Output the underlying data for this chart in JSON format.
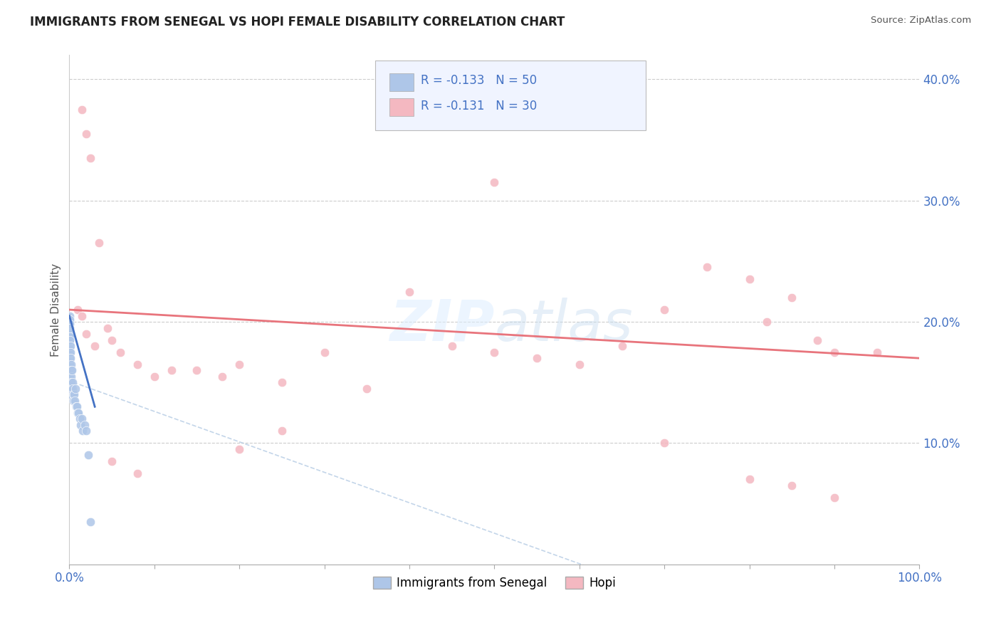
{
  "title": "IMMIGRANTS FROM SENEGAL VS HOPI FEMALE DISABILITY CORRELATION CHART",
  "source": "Source: ZipAtlas.com",
  "ylabel": "Female Disability",
  "senegal_color": "#aec6e8",
  "hopi_color": "#f4b8c1",
  "senegal_line_color": "#4472c4",
  "hopi_line_color": "#e8747c",
  "dashed_line_color": "#aac4e0",
  "grid_color": "#cccccc",
  "title_color": "#222222",
  "source_color": "#555555",
  "axis_label_color": "#4472c4",
  "legend_text_color": "#4472c4",
  "watermark": "ZIPatlas",
  "xlim": [
    0,
    100
  ],
  "ylim": [
    0,
    42
  ],
  "senegal_x": [
    0.02,
    0.02,
    0.02,
    0.03,
    0.03,
    0.03,
    0.04,
    0.04,
    0.04,
    0.05,
    0.05,
    0.05,
    0.06,
    0.06,
    0.07,
    0.07,
    0.08,
    0.08,
    0.09,
    0.09,
    0.1,
    0.1,
    0.12,
    0.12,
    0.15,
    0.15,
    0.18,
    0.2,
    0.22,
    0.25,
    0.3,
    0.35,
    0.4,
    0.45,
    0.5,
    0.55,
    0.6,
    0.7,
    0.8,
    0.9,
    1.0,
    1.1,
    1.2,
    1.3,
    1.5,
    1.6,
    1.8,
    2.0,
    2.2,
    2.5
  ],
  "senegal_y": [
    20.5,
    19.8,
    19.2,
    20.0,
    18.8,
    18.2,
    19.5,
    18.5,
    17.8,
    20.2,
    19.0,
    17.5,
    19.8,
    17.0,
    19.5,
    16.5,
    18.8,
    16.0,
    18.5,
    15.5,
    18.0,
    15.0,
    17.5,
    14.5,
    17.0,
    14.0,
    16.5,
    16.0,
    15.5,
    15.0,
    16.0,
    15.0,
    14.5,
    14.0,
    13.5,
    14.0,
    13.5,
    14.5,
    13.0,
    13.0,
    12.5,
    12.5,
    12.0,
    11.5,
    12.0,
    11.0,
    11.5,
    11.0,
    9.0,
    3.5
  ],
  "hopi_x": [
    1.0,
    1.5,
    2.0,
    3.0,
    4.5,
    5.0,
    6.0,
    8.0,
    10.0,
    12.0,
    15.0,
    18.0,
    20.0,
    25.0,
    30.0,
    35.0,
    40.0,
    45.0,
    50.0,
    55.0,
    60.0,
    65.0,
    70.0,
    75.0,
    80.0,
    82.0,
    85.0,
    88.0,
    90.0,
    95.0
  ],
  "hopi_y": [
    21.0,
    20.5,
    19.0,
    18.0,
    19.5,
    18.5,
    17.5,
    16.5,
    15.5,
    16.0,
    16.0,
    15.5,
    16.5,
    15.0,
    17.5,
    14.5,
    22.5,
    18.0,
    17.5,
    17.0,
    16.5,
    18.0,
    21.0,
    24.5,
    23.5,
    20.0,
    22.0,
    18.5,
    17.5,
    17.5
  ],
  "hopi_x_outliers": [
    1.5,
    2.0,
    2.5,
    3.5,
    50.0
  ],
  "hopi_y_outliers": [
    37.5,
    35.5,
    33.5,
    26.5,
    31.5
  ],
  "hopi_low_x": [
    5.0,
    8.0,
    20.0,
    25.0,
    70.0,
    80.0,
    85.0,
    90.0
  ],
  "hopi_low_y": [
    8.5,
    7.5,
    9.5,
    11.0,
    10.0,
    7.0,
    6.5,
    5.5
  ]
}
